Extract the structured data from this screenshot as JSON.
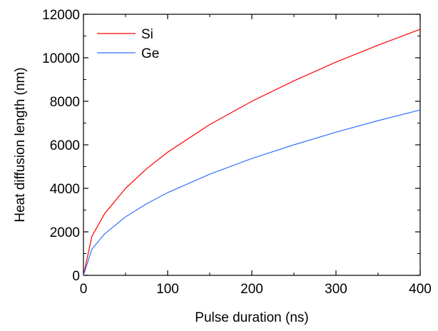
{
  "chart_data": {
    "type": "line",
    "title": "",
    "xlabel": "Pulse duration (ns)",
    "ylabel": "Heat diffusion length (nm)",
    "xlim": [
      0,
      400
    ],
    "ylim": [
      0,
      12000
    ],
    "x_ticks": [
      "0",
      "100",
      "200",
      "300",
      "400"
    ],
    "y_ticks": [
      "0",
      "2000",
      "4000",
      "6000",
      "8000",
      "10000",
      "12000"
    ],
    "grid": false,
    "legend_position": "top-left",
    "x": [
      0,
      10,
      25,
      50,
      75,
      100,
      150,
      200,
      250,
      300,
      350,
      400
    ],
    "series": [
      {
        "name": "Si",
        "color": "#ff0000",
        "values": [
          0,
          1790,
          2830,
          4000,
          4900,
          5660,
          6930,
          8000,
          8940,
          9800,
          10580,
          11310
        ]
      },
      {
        "name": "Ge",
        "color": "#3070ff",
        "values": [
          0,
          1200,
          1900,
          2690,
          3290,
          3800,
          4650,
          5370,
          6000,
          6580,
          7110,
          7600
        ]
      }
    ]
  }
}
